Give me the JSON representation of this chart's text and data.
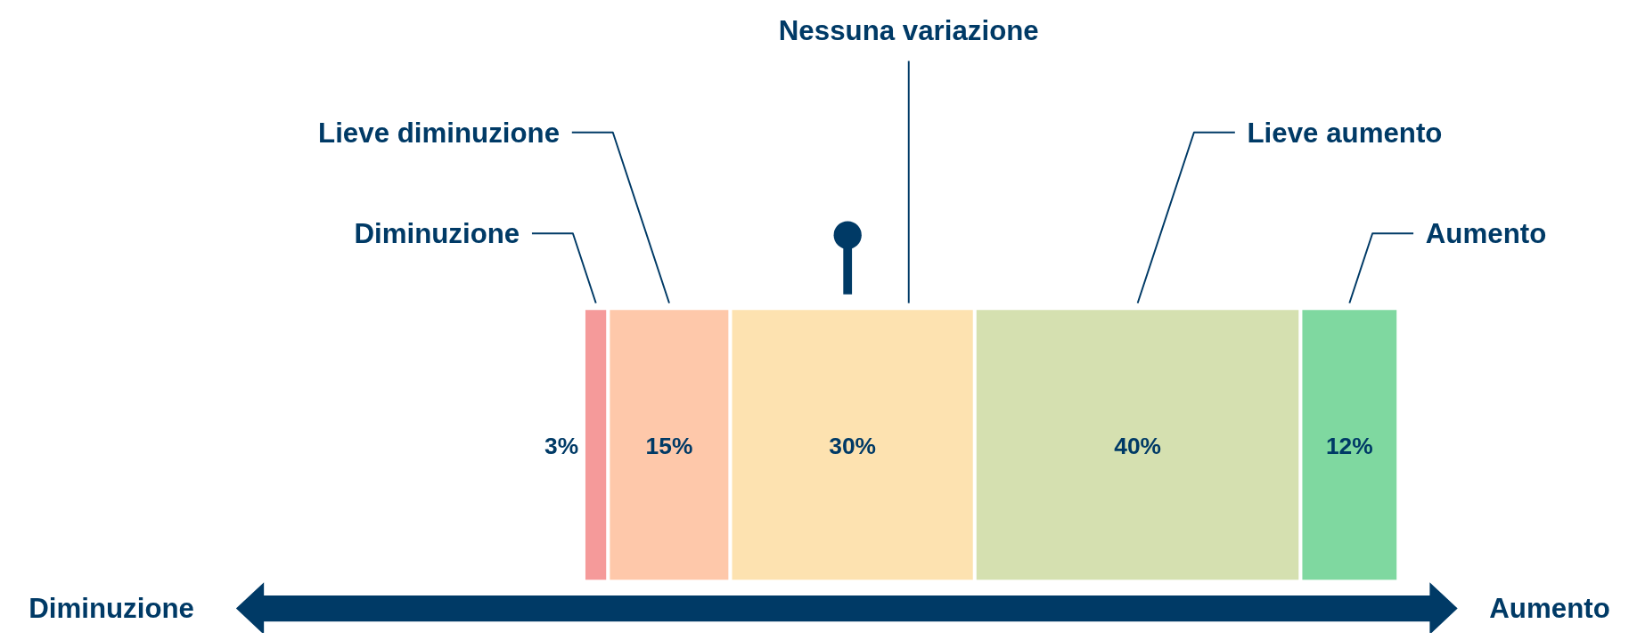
{
  "chart_data": {
    "type": "bar",
    "orientation": "horizontal",
    "stacked": true,
    "categories": [
      null
    ],
    "legend": false,
    "series": [
      {
        "name": "Diminuzione",
        "color": "#f59a9a",
        "values": [
          3
        ],
        "value_labels": [
          "3%"
        ]
      },
      {
        "name": "Lieve diminuzione",
        "color": "#fec8aa",
        "values": [
          15
        ],
        "value_labels": [
          "15%"
        ]
      },
      {
        "name": "Nessuna variazione",
        "color": "#fde2b0",
        "values": [
          30
        ],
        "value_labels": [
          "30%"
        ]
      },
      {
        "name": "Lieve aumento",
        "color": "#d5e0b0",
        "values": [
          40
        ],
        "value_labels": [
          "40%"
        ]
      },
      {
        "name": "Aumento",
        "color": "#7fd8a0",
        "values": [
          12
        ],
        "value_labels": [
          "12%"
        ]
      }
    ],
    "annotations": [
      "Diminuzione",
      "Aumento"
    ]
  }
}
